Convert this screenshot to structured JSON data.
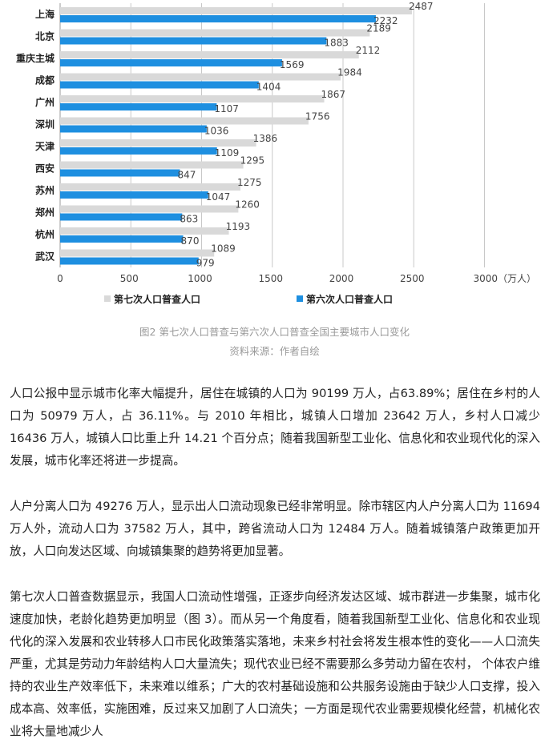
{
  "chart_data": {
    "type": "bar",
    "orientation": "horizontal",
    "categories": [
      "上海",
      "北京",
      "重庆主城",
      "成都",
      "广州",
      "深圳",
      "天津",
      "西安",
      "苏州",
      "郑州",
      "杭州",
      "武汉"
    ],
    "series": [
      {
        "name": "第七次人口普查人口",
        "color": "#d9d9d9",
        "values": [
          2487,
          2189,
          2112,
          1984,
          1867,
          1756,
          1386,
          1295,
          1275,
          1260,
          1193,
          1089
        ]
      },
      {
        "name": "第六次人口普查人口",
        "color": "#1e8fe0",
        "values": [
          2232,
          1883,
          1569,
          1404,
          1107,
          1036,
          1109,
          847,
          1047,
          863,
          870,
          979
        ]
      }
    ],
    "x_ticks": [
      "0",
      "500",
      "1000",
      "1500",
      "2000",
      "2500",
      "3000（万人）"
    ],
    "xlim": [
      0,
      3000
    ],
    "grid": true,
    "legend_position": "bottom"
  },
  "caption": {
    "title": "图2 第七次人口普查与第六次人口普查全国主要城市人口变化",
    "source": "资料来源：作者自绘"
  },
  "paragraphs": [
    "人口公报中显示城市化率大幅提升，居住在城镇的人口为 90199 万人，占63.89%；居住在乡村的人口为 50979 万人，占 36.11%。与 2010 年相比，城镇人口增加 23642 万人，乡村人口减少 16436 万人，城镇人口比重上升 14.21 个百分点；随着我国新型工业化、信息化和农业现代化的深入发展，城市化率还将进一步提高。",
    "人户分离人口为 49276 万人，显示出人口流动现象已经非常明显。除市辖区内人户分离人口为 11694 万人外，流动人口为 37582 万人，其中，跨省流动人口为 12484 万人。随着城镇落户政策更加开放，人口向发达区域、向城镇集聚的趋势将更加显著。",
    "第七次人口普查数据显示，我国人口流动性增强，正逐步向经济发达区域、城市群进一步集聚，城市化速度加快，老龄化趋势更加明显（图 3）。而从另一个角度看，随着我国新型工业化、信息化和农业现代化的深入发展和农业转移人口市民化政策落实落地，未来乡村社会将发生根本性的变化——人口流失严重，尤其是劳动力年龄结构人口大量流失；现代农业已经不需要那么多劳动力留在农村， 个体农户维持的农业生产效率低下，未来难以维系；广大的农村基础设施和公共服务设施由于缺少人口支撑，投入成本高、效率低，实施困难，反过来又加剧了人口流失；一方面是现代农业需要规模化经营，机械化农业将大量地减少人"
  ]
}
